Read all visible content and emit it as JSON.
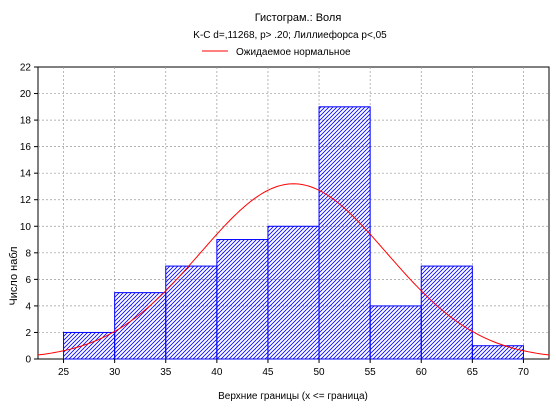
{
  "chart_data": {
    "type": "bar",
    "title": "Гистограм.: Воля",
    "subtitle": "K-C d=,11268, p> .20; Лиллиефорса p<,05",
    "legend": {
      "label": "Ожидаемое нормальное",
      "placement": "top-center"
    },
    "xlabel": "Верхние границы (x <= граница)",
    "ylabel": "Число набл",
    "xlim": [
      22.5,
      72.5
    ],
    "ylim": [
      0,
      22
    ],
    "x_ticks": [
      25,
      30,
      35,
      40,
      45,
      50,
      55,
      60,
      65,
      70
    ],
    "y_ticks": [
      0,
      2,
      4,
      6,
      8,
      10,
      12,
      14,
      16,
      18,
      20,
      22
    ],
    "grid": true,
    "bins": [
      {
        "upper": 30,
        "count": 2
      },
      {
        "upper": 35,
        "count": 5
      },
      {
        "upper": 40,
        "count": 7
      },
      {
        "upper": 45,
        "count": 9
      },
      {
        "upper": 50,
        "count": 10
      },
      {
        "upper": 55,
        "count": 19
      },
      {
        "upper": 60,
        "count": 4
      },
      {
        "upper": 65,
        "count": 7
      },
      {
        "upper": 70,
        "count": 1
      }
    ],
    "bin_width": 5,
    "normal_curve": {
      "mean": 47.5,
      "peak": 13.2,
      "sd": 9.1
    },
    "colors": {
      "bars": "#0000ff",
      "curve": "#ff0000",
      "grid": "#9a9a9a"
    }
  }
}
